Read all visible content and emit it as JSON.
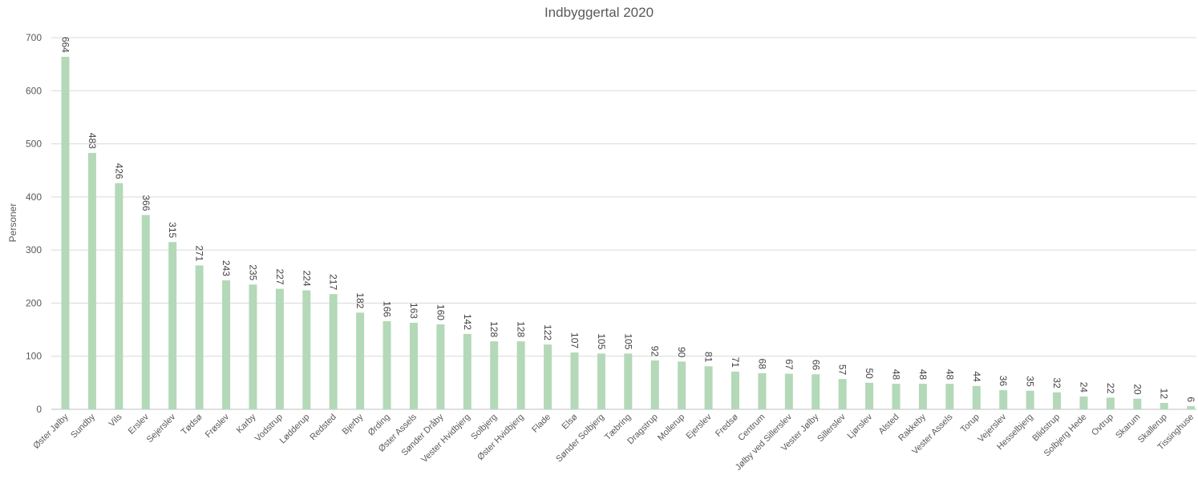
{
  "chart_data": {
    "type": "bar",
    "title": "Indbyggertal 2020",
    "ylabel": "Personer",
    "xlabel": "",
    "ylim": [
      0,
      700
    ],
    "yticks": [
      0,
      100,
      200,
      300,
      400,
      500,
      600,
      700
    ],
    "grid": true,
    "bar_color": "#b3d9b8",
    "categories": [
      "Øster Jølby",
      "Sundby",
      "Vils",
      "Erslev",
      "Sejerslev",
      "Tødsø",
      "Frøslev",
      "Karby",
      "Vodstrup",
      "Lødderup",
      "Redsted",
      "Bjerby",
      "Ørding",
      "Øster Assels",
      "Sønder Dråby",
      "Vester Hvidbjerg",
      "Solbjerg",
      "Øster Hvidbjerg",
      "Flade",
      "Elsø",
      "Sønder Solbjerg",
      "Tæbring",
      "Dragstrup",
      "Mollerup",
      "Ejerslev",
      "Fredsø",
      "Centrum",
      "Jølby ved Sillerslev",
      "Vester Jølby",
      "Sillerslev",
      "Ljørslev",
      "Alsted",
      "Rakkeby",
      "Vester Assels",
      "Torup",
      "Vejerslev",
      "Hesselbjerg",
      "Blidstrup",
      "Solbjerg Hede",
      "Ovtrup",
      "Skarum",
      "Skallerup",
      "Tissinghuse"
    ],
    "values": [
      664,
      483,
      426,
      366,
      315,
      271,
      243,
      235,
      227,
      224,
      217,
      182,
      166,
      163,
      160,
      142,
      128,
      128,
      122,
      107,
      105,
      105,
      92,
      90,
      81,
      71,
      68,
      67,
      66,
      57,
      50,
      48,
      48,
      48,
      44,
      36,
      35,
      32,
      24,
      22,
      20,
      12,
      6
    ]
  }
}
